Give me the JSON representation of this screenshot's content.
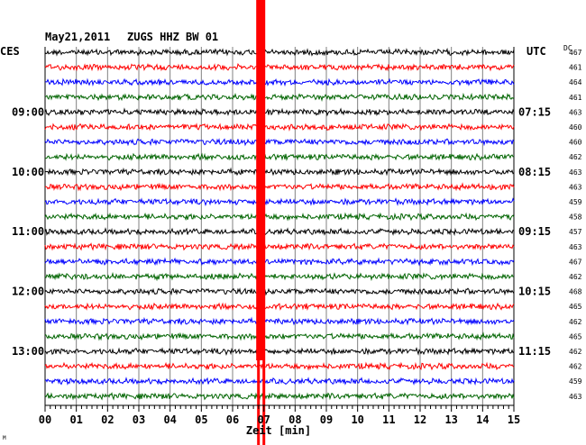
{
  "header": {
    "date": "May21,2011",
    "station": "ZUGS HHZ BW 01",
    "left_zone": "CES",
    "right_zone": "UTC",
    "dc_label": "DC"
  },
  "chart_data": {
    "type": "line",
    "title": "May21,2011  ZUGS HHZ BW 01",
    "xlabel": "Zeit [min]",
    "ylabel": "",
    "xlim": [
      0,
      15
    ],
    "x_ticks": [
      "00",
      "01",
      "02",
      "03",
      "04",
      "05",
      "06",
      "07",
      "08",
      "09",
      "10",
      "11",
      "12",
      "13",
      "14",
      "15"
    ],
    "grid": true,
    "trace_count": 24,
    "trace_colors": [
      "#000000",
      "#ff0000",
      "#0000ff",
      "#006400"
    ],
    "left_hour_labels": [
      {
        "trace": 4,
        "label": "09:00"
      },
      {
        "trace": 8,
        "label": "10:00"
      },
      {
        "trace": 12,
        "label": "11:00"
      },
      {
        "trace": 16,
        "label": "12:00"
      },
      {
        "trace": 20,
        "label": "13:00"
      }
    ],
    "right_hour_labels": [
      {
        "trace": 4,
        "label": "07:15"
      },
      {
        "trace": 8,
        "label": "08:15"
      },
      {
        "trace": 12,
        "label": "09:15"
      },
      {
        "trace": 16,
        "label": "10:15"
      },
      {
        "trace": 20,
        "label": "11:15"
      }
    ],
    "dc_offsets": [
      "467",
      "461",
      "464",
      "461",
      "463",
      "460",
      "460",
      "462",
      "463",
      "463",
      "459",
      "458",
      "457",
      "463",
      "467",
      "462",
      "468",
      "465",
      "462",
      "465",
      "462",
      "462",
      "459",
      "463"
    ],
    "event": {
      "minute": 6.9,
      "color": "#ff0000"
    }
  },
  "footer": {
    "corner_mark": "M"
  }
}
